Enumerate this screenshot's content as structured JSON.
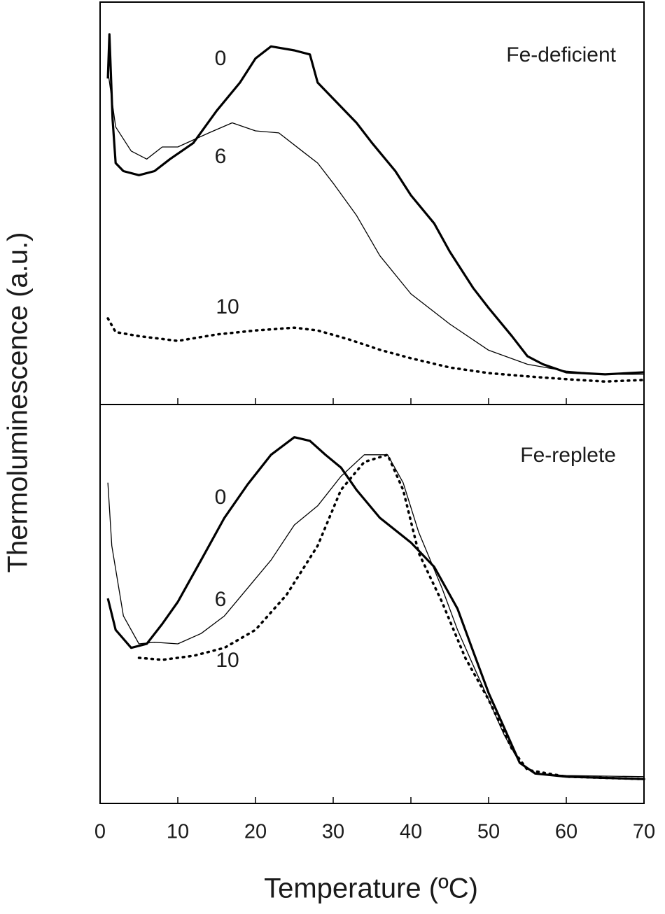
{
  "chart_data": [
    {
      "type": "line",
      "annotation": "Fe-deficient",
      "ylabel": "Thermoluminescence (a.u.)",
      "xlim": [
        0,
        70
      ],
      "xticks": [
        0,
        10,
        20,
        30,
        40,
        50,
        60,
        70
      ],
      "ylim": [
        0,
        100
      ],
      "series": [
        {
          "name": "0",
          "color": "#000000",
          "style": "thick",
          "x": [
            1,
            1.2,
            1.6,
            2,
            3,
            5,
            7,
            9,
            12,
            15,
            18,
            20,
            22,
            25,
            27,
            28,
            30,
            33,
            35,
            38,
            40,
            43,
            45,
            48,
            50,
            53,
            55,
            57,
            60,
            65,
            70
          ],
          "values": [
            81,
            92,
            71,
            60,
            58,
            57,
            58,
            61,
            65,
            73,
            80,
            86,
            89,
            88,
            87,
            80,
            76,
            70,
            65,
            58,
            52,
            45,
            38,
            29,
            24,
            17,
            12,
            10,
            8,
            7.5,
            8
          ]
        },
        {
          "name": "6",
          "color": "#000000",
          "style": "thin",
          "x": [
            1,
            2,
            4,
            6,
            8,
            10,
            14,
            17,
            20,
            23,
            26,
            28,
            30,
            33,
            36,
            40,
            45,
            50,
            55,
            60,
            65,
            70
          ],
          "values": [
            83,
            69,
            63,
            61,
            64,
            64,
            67.5,
            70,
            68,
            67.5,
            63,
            60,
            55,
            47,
            37,
            27.5,
            20,
            13.5,
            10,
            8.3,
            7.5,
            7.5
          ]
        },
        {
          "name": "10",
          "color": "#000000",
          "style": "dotted",
          "x": [
            1,
            2,
            5,
            10,
            15,
            20,
            25,
            28,
            32,
            36,
            40,
            45,
            50,
            55,
            60,
            65,
            70
          ],
          "values": [
            21.4,
            18,
            17,
            15.8,
            17.4,
            18.4,
            19.1,
            18.4,
            16.2,
            13.6,
            11.5,
            9.2,
            7.8,
            7,
            6.3,
            5.7,
            6.1
          ]
        }
      ]
    },
    {
      "type": "line",
      "annotation": "Fe-replete",
      "xlabel": "Temperature (ºC)",
      "xlim": [
        0,
        70
      ],
      "xticks": [
        0,
        10,
        20,
        30,
        40,
        50,
        60,
        70
      ],
      "ylim": [
        0,
        100
      ],
      "series": [
        {
          "name": "0",
          "color": "#000000",
          "style": "thick",
          "x": [
            1,
            2,
            4,
            6,
            8,
            10,
            13,
            16,
            19,
            22,
            25,
            27,
            29,
            31,
            33,
            36,
            40,
            43,
            46,
            48,
            50,
            52,
            54,
            56,
            60,
            70
          ],
          "values": [
            51.4,
            43.5,
            39,
            40,
            45,
            50.5,
            61,
            71.6,
            80,
            87.4,
            91.8,
            90.9,
            87.4,
            84.2,
            78.6,
            71.6,
            65.4,
            59.3,
            48.8,
            38.2,
            27.7,
            19,
            10.2,
            7.5,
            6.7,
            6.1
          ]
        },
        {
          "name": "6",
          "color": "#000000",
          "style": "thin",
          "x": [
            1,
            1.5,
            3,
            5,
            7,
            10,
            13,
            16,
            19,
            22,
            25,
            28,
            31,
            34,
            37,
            39,
            41,
            44,
            46,
            48,
            50,
            52,
            54,
            56,
            60,
            70
          ],
          "values": [
            80.4,
            64.6,
            47,
            40,
            40.4,
            40,
            42.6,
            47,
            54,
            61,
            69.8,
            74.6,
            82,
            87.4,
            87.4,
            80.4,
            68,
            54,
            43.5,
            34.7,
            26,
            17.2,
            10.2,
            7.5,
            7,
            6.7
          ]
        },
        {
          "name": "10",
          "color": "#000000",
          "style": "dotted",
          "x": [
            5,
            8,
            12,
            16,
            20,
            24,
            28,
            31,
            34,
            37,
            39,
            41,
            44,
            47,
            50,
            53,
            55,
            60,
            70
          ],
          "values": [
            36.5,
            36,
            37,
            39,
            43.5,
            52.3,
            64.6,
            78.6,
            85.6,
            87.4,
            78.6,
            62.8,
            50.5,
            36.5,
            26,
            13.7,
            8.4,
            6.7,
            6.1
          ]
        }
      ]
    }
  ]
}
